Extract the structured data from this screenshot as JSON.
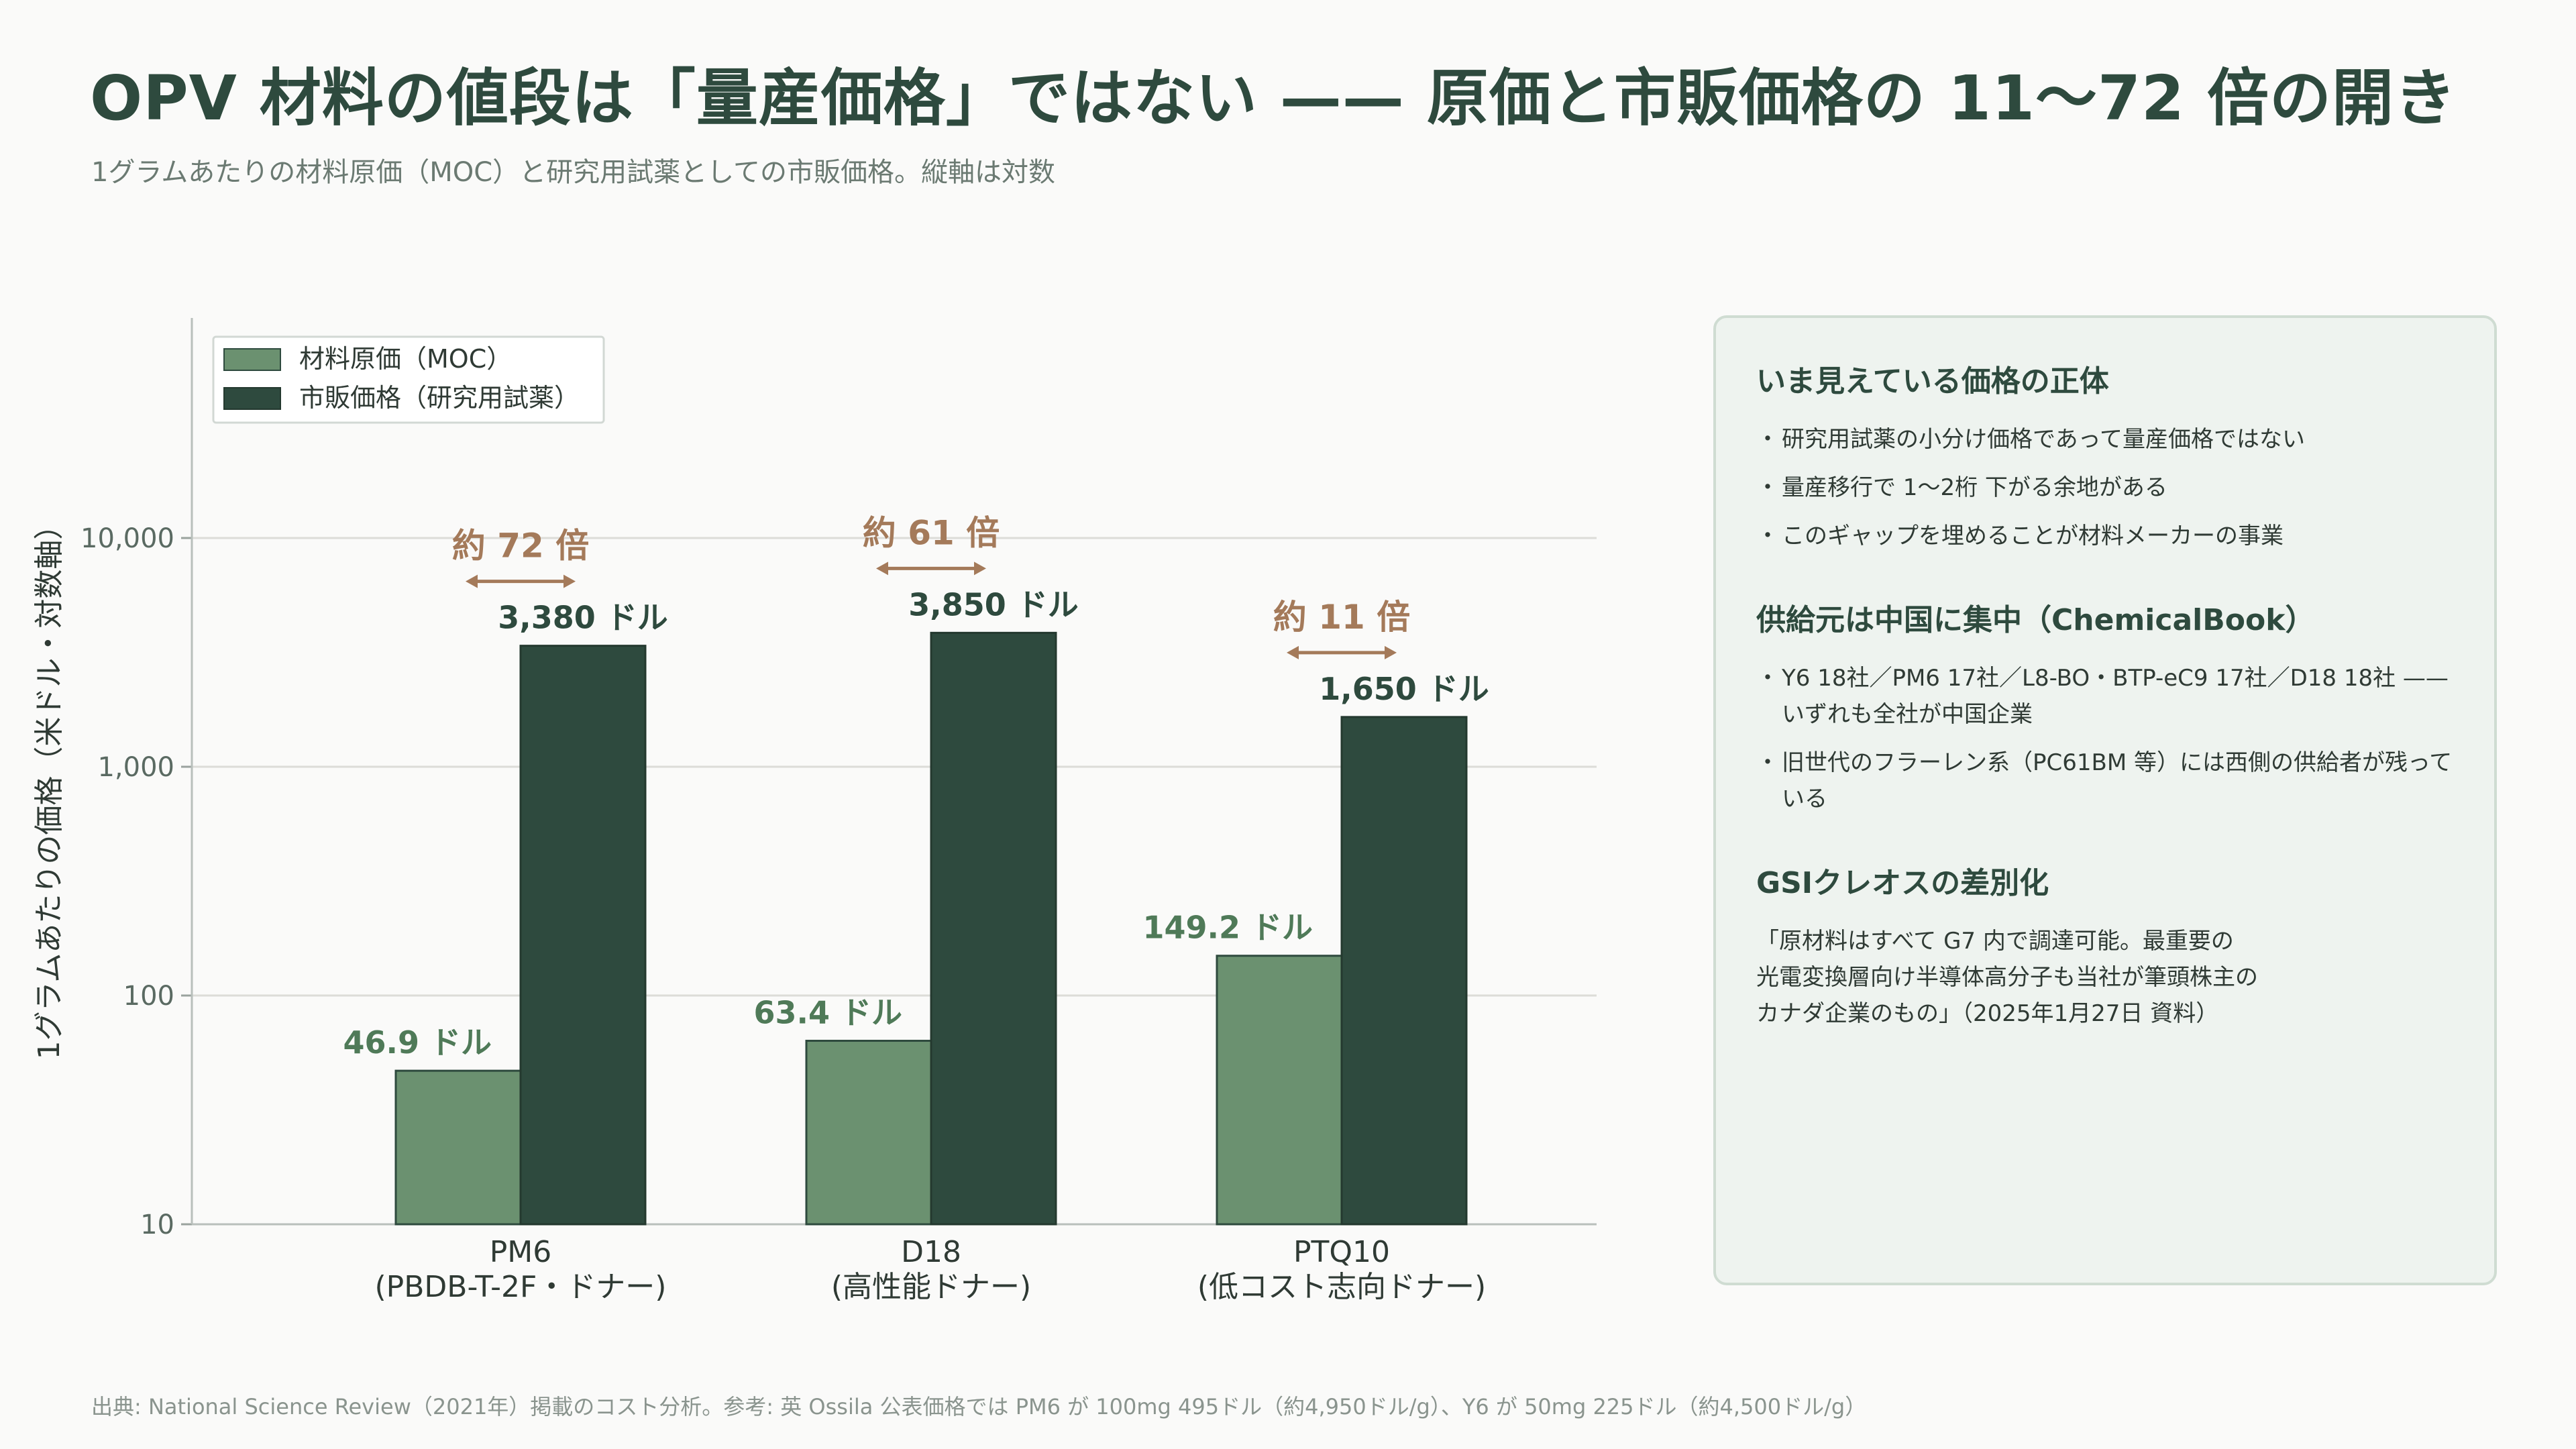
{
  "title": "OPV 材料の値段は「量産価格」ではない —— 原価と市販価格の 11〜72 倍の開き",
  "subtitle": "1グラムあたりの材料原価（MOC）と研究用試薬としての市販価格。縦軸は対数",
  "chart_data": {
    "type": "bar",
    "scale": "log",
    "ylabel": "1グラムあたりの価格（米ドル・対数軸）",
    "ylim": [
      10,
      100000
    ],
    "yticks": [
      10,
      100,
      1000,
      10000
    ],
    "ytick_labels": [
      "10",
      "100",
      "1,000",
      "10,000"
    ],
    "grid": true,
    "legend_position": "top-left",
    "categories": [
      "PM6",
      "D18",
      "PTQ10"
    ],
    "category_sublabels": [
      "(PBDB-T-2F・ドナー)",
      "(高性能ドナー)",
      "(低コスト志向ドナー)"
    ],
    "series": [
      {
        "name": "材料原価（MOC）",
        "color": "#6b9170",
        "values": [
          46.9,
          63.4,
          149.2
        ],
        "labels": [
          "46.9 ドル",
          "63.4 ドル",
          "149.2 ドル"
        ]
      },
      {
        "name": "市販価格（研究用試薬）",
        "color": "#2e4a3e",
        "values": [
          3380,
          3850,
          1650
        ],
        "labels": [
          "3,380 ドル",
          "3,850 ドル",
          "1,650 ドル"
        ]
      }
    ],
    "ratio_labels": [
      "約 72 倍",
      "約 61 倍",
      "約 11 倍"
    ],
    "ratio_color": "#a47a5a"
  },
  "panel": {
    "sections": [
      {
        "heading": "いま見えている価格の正体",
        "items": [
          "研究用試薬の小分け価格であって量産価格ではない",
          "量産移行で 1〜2桁 下がる余地がある",
          "このギャップを埋めることが材料メーカーの事業"
        ]
      },
      {
        "heading": "供給元は中国に集中（ChemicalBook）",
        "items": [
          "Y6 18社／PM6 17社／L8-BO・BTP-eC9 17社／D18 18社 —— いずれも全社が中国企業",
          "旧世代のフラーレン系（PC61BM 等）には西側の供給者が残っている"
        ]
      }
    ],
    "gsi_heading": "GSIクレオスの差別化",
    "gsi_quote": "「原材料はすべて G7 内で調達可能。最重要の\n光電変換層向け半導体高分子も当社が筆頭株主の\nカナダ企業のもの」（2025年1月27日 資料）"
  },
  "source": "出典: National Science Review（2021年）掲載のコスト分析。参考: 英 Ossila 公表価格では PM6 が 100mg 495ドル（約4,950ドル/g）、Y6 が 50mg 225ドル（約4,500ドル/g）",
  "colors": {
    "text_dark": "#2e4a3e",
    "moc_bar": "#6b9170",
    "market_bar": "#2e4a3e",
    "ratio": "#a47a5a",
    "grid": "#dcdcd8",
    "panel_bg": "#eef3ef"
  }
}
